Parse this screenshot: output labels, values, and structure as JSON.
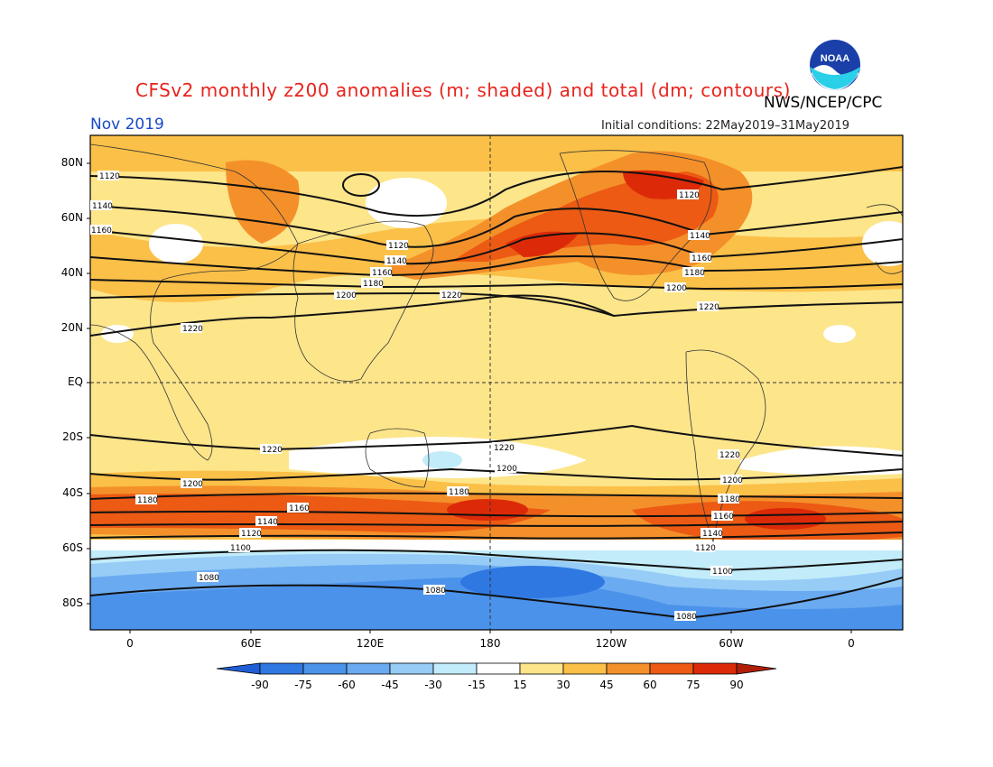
{
  "title": "CFSv2 monthly z200 anomalies (m; shaded) and total (dm; contours)",
  "agency": "NWS/NCEP/CPC",
  "period": "Nov 2019",
  "initial_conditions": "Initial conditions: 22May2019–31May2019",
  "logo_text": "NOAA",
  "map": {
    "lat_labels": [
      "80N",
      "60N",
      "40N",
      "20N",
      "EQ",
      "20S",
      "40S",
      "60S",
      "80S"
    ],
    "lon_labels": [
      "0",
      "60E",
      "120E",
      "180",
      "120W",
      "60W",
      "0"
    ]
  },
  "colorbar": {
    "labels": [
      "-90",
      "-75",
      "-60",
      "-45",
      "-30",
      "-15",
      "15",
      "30",
      "45",
      "60",
      "75",
      "90"
    ],
    "colors": [
      "#1f5ed6",
      "#2f78e2",
      "#4b92ea",
      "#6aaaf0",
      "#96ccf6",
      "#c2ecfa",
      "#ffffff",
      "#fde58a",
      "#fbc048",
      "#f4902a",
      "#ec5a14",
      "#dc2a08",
      "#b01e08"
    ]
  },
  "colors": {
    "title": "#e8231c",
    "period": "#1a49c8",
    "ocean_base": "#fde58a"
  },
  "contours": [
    {
      "label": "1120"
    },
    {
      "label": "1140"
    },
    {
      "label": "1160"
    },
    {
      "label": "1180"
    },
    {
      "label": "1200"
    },
    {
      "label": "1220"
    },
    {
      "label": "1100"
    },
    {
      "label": "1080"
    }
  ]
}
